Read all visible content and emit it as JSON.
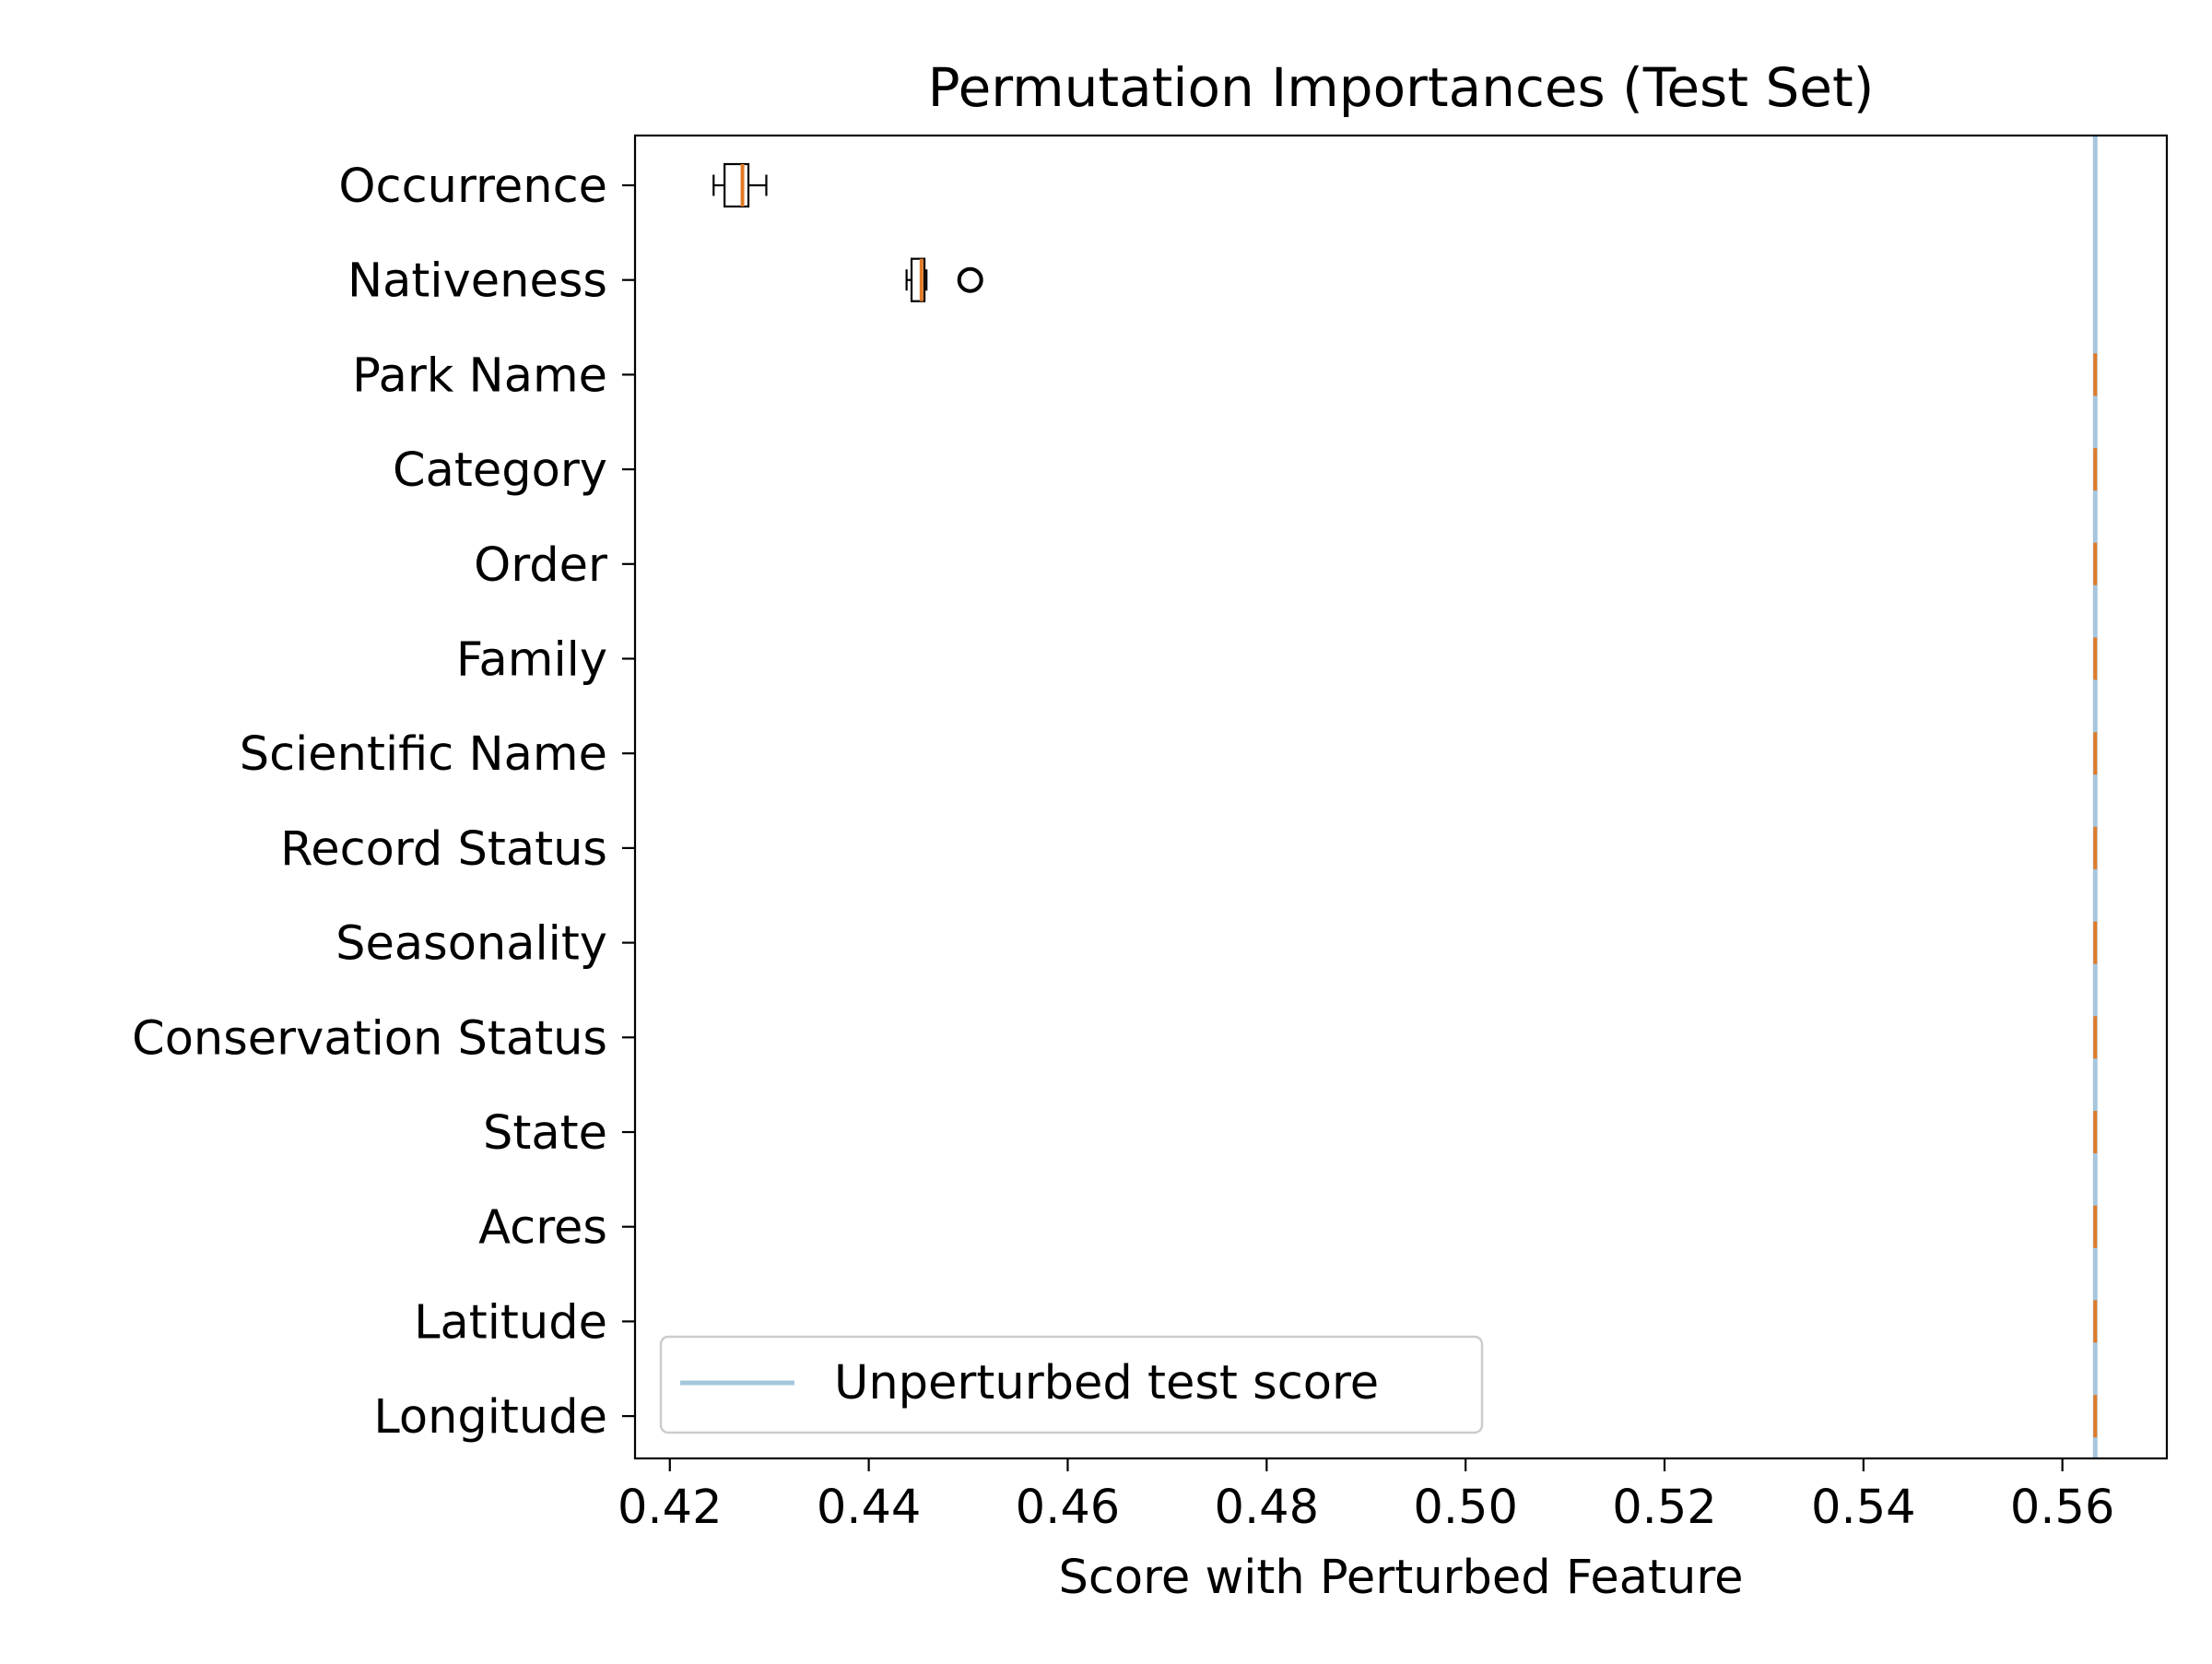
{
  "chart_data": {
    "type": "boxplot",
    "title": "Permutation Importances (Test Set)",
    "xlabel": "Score with Perturbed Feature",
    "ylabel": "",
    "xlim": [
      0.4165,
      0.5705
    ],
    "x_ticks": [
      "0.42",
      "0.44",
      "0.46",
      "0.48",
      "0.50",
      "0.52",
      "0.54",
      "0.56"
    ],
    "x_tick_values": [
      0.42,
      0.44,
      0.46,
      0.48,
      0.5,
      0.52,
      0.54,
      0.56
    ],
    "grid": false,
    "legend_position": "lower-left",
    "reference_line": {
      "label": "Unperturbed test score",
      "value": 0.5633,
      "color": "#a6c6dd"
    },
    "box_color": "#000000",
    "median_color": "#e07b28",
    "features": [
      {
        "name": "Occurrence",
        "whisker_low": 0.4244,
        "q1": 0.4255,
        "median": 0.4273,
        "q3": 0.4279,
        "whisker_high": 0.4297,
        "outliers": []
      },
      {
        "name": "Nativeness",
        "whisker_low": 0.4438,
        "q1": 0.4443,
        "median": 0.4453,
        "q3": 0.4456,
        "whisker_high": 0.4458,
        "outliers": [
          0.4502
        ]
      },
      {
        "name": "Park Name",
        "whisker_low": 0.5633,
        "q1": 0.5633,
        "median": 0.5633,
        "q3": 0.5633,
        "whisker_high": 0.5633,
        "outliers": []
      },
      {
        "name": "Category",
        "whisker_low": 0.5633,
        "q1": 0.5633,
        "median": 0.5633,
        "q3": 0.5633,
        "whisker_high": 0.5633,
        "outliers": []
      },
      {
        "name": "Order",
        "whisker_low": 0.5633,
        "q1": 0.5633,
        "median": 0.5633,
        "q3": 0.5633,
        "whisker_high": 0.5633,
        "outliers": []
      },
      {
        "name": "Family",
        "whisker_low": 0.5633,
        "q1": 0.5633,
        "median": 0.5633,
        "q3": 0.5633,
        "whisker_high": 0.5633,
        "outliers": []
      },
      {
        "name": "Scientific Name",
        "whisker_low": 0.5633,
        "q1": 0.5633,
        "median": 0.5633,
        "q3": 0.5633,
        "whisker_high": 0.5633,
        "outliers": []
      },
      {
        "name": "Record Status",
        "whisker_low": 0.5633,
        "q1": 0.5633,
        "median": 0.5633,
        "q3": 0.5633,
        "whisker_high": 0.5633,
        "outliers": []
      },
      {
        "name": "Seasonality",
        "whisker_low": 0.5633,
        "q1": 0.5633,
        "median": 0.5633,
        "q3": 0.5633,
        "whisker_high": 0.5633,
        "outliers": []
      },
      {
        "name": "Conservation Status",
        "whisker_low": 0.5633,
        "q1": 0.5633,
        "median": 0.5633,
        "q3": 0.5633,
        "whisker_high": 0.5633,
        "outliers": []
      },
      {
        "name": "State",
        "whisker_low": 0.5633,
        "q1": 0.5633,
        "median": 0.5633,
        "q3": 0.5633,
        "whisker_high": 0.5633,
        "outliers": []
      },
      {
        "name": "Acres",
        "whisker_low": 0.5633,
        "q1": 0.5633,
        "median": 0.5633,
        "q3": 0.5633,
        "whisker_high": 0.5633,
        "outliers": []
      },
      {
        "name": "Latitude",
        "whisker_low": 0.5633,
        "q1": 0.5633,
        "median": 0.5633,
        "q3": 0.5633,
        "whisker_high": 0.5633,
        "outliers": []
      },
      {
        "name": "Longitude",
        "whisker_low": 0.5633,
        "q1": 0.5633,
        "median": 0.5633,
        "q3": 0.5633,
        "whisker_high": 0.5633,
        "outliers": []
      }
    ]
  }
}
